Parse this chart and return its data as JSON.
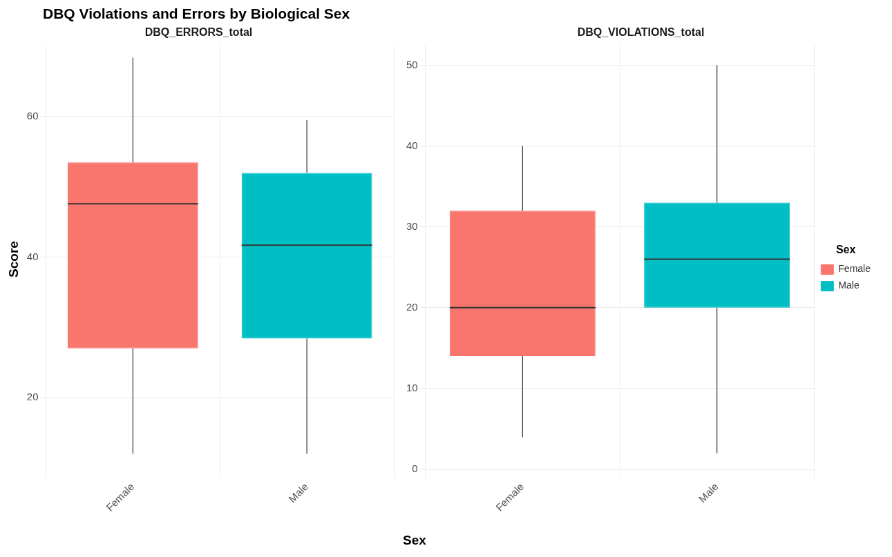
{
  "chart_data": [
    {
      "type": "box",
      "title": "DBQ Violations and Errors by Biological Sex",
      "subtitle": "DBQ_ERRORS_total",
      "xlabel": "Sex",
      "ylabel": "Score",
      "categories": [
        "Female",
        "Male"
      ],
      "series": [
        {
          "color": "#f8766d",
          "boxes": [
            {
              "low": 12,
              "q1": 27,
              "median": 47.6,
              "q3": 53.5,
              "high": 68.4
            },
            null
          ]
        },
        {
          "color": "#00bfc4",
          "boxes": [
            null,
            {
              "low": 12,
              "q1": 28.4,
              "median": 41.7,
              "q3": 52,
              "high": 59.5
            }
          ]
        }
      ],
      "ylim": [
        9.2,
        70.2
      ],
      "yticks": [
        20,
        40,
        60
      ],
      "grid": true,
      "legend": false
    },
    {
      "type": "box",
      "subtitle": "DBQ_VIOLATIONS_total",
      "categories": [
        "Female",
        "Male"
      ],
      "series": [
        {
          "name": "Female",
          "color": "#f8766d",
          "boxes": [
            {
              "low": 4,
              "q1": 14,
              "median": 20,
              "q3": 32,
              "high": 40
            },
            null
          ]
        },
        {
          "name": "Male",
          "color": "#00bfc4",
          "boxes": [
            null,
            {
              "low": 2,
              "q1": 20,
              "median": 26,
              "q3": 33,
              "high": 50
            }
          ]
        }
      ],
      "ylim": [
        -0.5,
        52.5
      ],
      "yticks": [
        0,
        10,
        20,
        30,
        40,
        50
      ],
      "grid": true,
      "legend": "right",
      "legend_title": "Sex"
    }
  ]
}
